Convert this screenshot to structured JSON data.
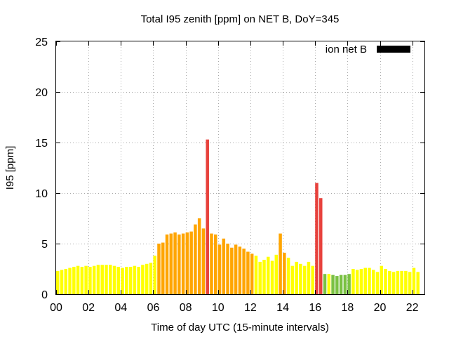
{
  "chart_data": {
    "type": "bar",
    "title": "Total I95 zenith [ppm] on NET B, DoY=345",
    "xlabel": "Time of day UTC (15-minute intervals)",
    "ylabel": "I95 [ppm]",
    "legend": {
      "label": "ion net B",
      "color": "#000000",
      "position": "top-right"
    },
    "xlim": [
      0,
      22.75
    ],
    "ylim": [
      0,
      25
    ],
    "x_ticks": [
      {
        "value": 0,
        "label": "00"
      },
      {
        "value": 2,
        "label": "02"
      },
      {
        "value": 4,
        "label": "04"
      },
      {
        "value": 6,
        "label": "06"
      },
      {
        "value": 8,
        "label": "08"
      },
      {
        "value": 10,
        "label": "10"
      },
      {
        "value": 12,
        "label": "12"
      },
      {
        "value": 14,
        "label": "14"
      },
      {
        "value": 16,
        "label": "16"
      },
      {
        "value": 18,
        "label": "18"
      },
      {
        "value": 20,
        "label": "20"
      },
      {
        "value": 22,
        "label": "22"
      }
    ],
    "y_ticks": [
      0,
      5,
      10,
      15,
      20,
      25
    ],
    "grid": true,
    "interval_hours": 0.25,
    "color_classes": {
      "green": "#7ac143",
      "yellow": "#ffff00",
      "orange": "#ffa500",
      "red": "#e8413c"
    },
    "bars": [
      {
        "t": 0.0,
        "v": 2.3,
        "c": "yellow"
      },
      {
        "t": 0.25,
        "v": 2.4,
        "c": "yellow"
      },
      {
        "t": 0.5,
        "v": 2.5,
        "c": "yellow"
      },
      {
        "t": 0.75,
        "v": 2.6,
        "c": "yellow"
      },
      {
        "t": 1.0,
        "v": 2.7,
        "c": "yellow"
      },
      {
        "t": 1.25,
        "v": 2.8,
        "c": "yellow"
      },
      {
        "t": 1.5,
        "v": 2.7,
        "c": "yellow"
      },
      {
        "t": 1.75,
        "v": 2.8,
        "c": "yellow"
      },
      {
        "t": 2.0,
        "v": 2.7,
        "c": "yellow"
      },
      {
        "t": 2.25,
        "v": 2.8,
        "c": "yellow"
      },
      {
        "t": 2.5,
        "v": 2.9,
        "c": "yellow"
      },
      {
        "t": 2.75,
        "v": 2.9,
        "c": "yellow"
      },
      {
        "t": 3.0,
        "v": 2.9,
        "c": "yellow"
      },
      {
        "t": 3.25,
        "v": 2.9,
        "c": "yellow"
      },
      {
        "t": 3.5,
        "v": 2.8,
        "c": "yellow"
      },
      {
        "t": 3.75,
        "v": 2.7,
        "c": "yellow"
      },
      {
        "t": 4.0,
        "v": 2.6,
        "c": "yellow"
      },
      {
        "t": 4.25,
        "v": 2.7,
        "c": "yellow"
      },
      {
        "t": 4.5,
        "v": 2.7,
        "c": "yellow"
      },
      {
        "t": 4.75,
        "v": 2.8,
        "c": "yellow"
      },
      {
        "t": 5.0,
        "v": 2.7,
        "c": "yellow"
      },
      {
        "t": 5.25,
        "v": 2.9,
        "c": "yellow"
      },
      {
        "t": 5.5,
        "v": 3.0,
        "c": "yellow"
      },
      {
        "t": 5.75,
        "v": 3.1,
        "c": "yellow"
      },
      {
        "t": 6.0,
        "v": 3.8,
        "c": "yellow"
      },
      {
        "t": 6.25,
        "v": 5.0,
        "c": "orange"
      },
      {
        "t": 6.5,
        "v": 5.1,
        "c": "orange"
      },
      {
        "t": 6.75,
        "v": 5.9,
        "c": "orange"
      },
      {
        "t": 7.0,
        "v": 6.0,
        "c": "orange"
      },
      {
        "t": 7.25,
        "v": 6.1,
        "c": "orange"
      },
      {
        "t": 7.5,
        "v": 5.9,
        "c": "orange"
      },
      {
        "t": 7.75,
        "v": 6.0,
        "c": "orange"
      },
      {
        "t": 8.0,
        "v": 6.1,
        "c": "orange"
      },
      {
        "t": 8.25,
        "v": 6.2,
        "c": "orange"
      },
      {
        "t": 8.5,
        "v": 6.9,
        "c": "orange"
      },
      {
        "t": 8.75,
        "v": 7.5,
        "c": "orange"
      },
      {
        "t": 9.0,
        "v": 6.5,
        "c": "orange"
      },
      {
        "t": 9.25,
        "v": 15.3,
        "c": "red"
      },
      {
        "t": 9.5,
        "v": 6.0,
        "c": "orange"
      },
      {
        "t": 9.75,
        "v": 5.9,
        "c": "orange"
      },
      {
        "t": 10.0,
        "v": 4.9,
        "c": "orange"
      },
      {
        "t": 10.25,
        "v": 5.5,
        "c": "orange"
      },
      {
        "t": 10.5,
        "v": 5.0,
        "c": "orange"
      },
      {
        "t": 10.75,
        "v": 4.6,
        "c": "orange"
      },
      {
        "t": 11.0,
        "v": 4.9,
        "c": "orange"
      },
      {
        "t": 11.25,
        "v": 4.7,
        "c": "orange"
      },
      {
        "t": 11.5,
        "v": 4.5,
        "c": "orange"
      },
      {
        "t": 11.75,
        "v": 4.2,
        "c": "orange"
      },
      {
        "t": 12.0,
        "v": 4.0,
        "c": "orange"
      },
      {
        "t": 12.25,
        "v": 3.8,
        "c": "yellow"
      },
      {
        "t": 12.5,
        "v": 3.2,
        "c": "yellow"
      },
      {
        "t": 12.75,
        "v": 3.4,
        "c": "yellow"
      },
      {
        "t": 13.0,
        "v": 3.7,
        "c": "yellow"
      },
      {
        "t": 13.25,
        "v": 3.3,
        "c": "yellow"
      },
      {
        "t": 13.5,
        "v": 3.9,
        "c": "yellow"
      },
      {
        "t": 13.75,
        "v": 6.0,
        "c": "orange"
      },
      {
        "t": 14.0,
        "v": 4.1,
        "c": "orange"
      },
      {
        "t": 14.25,
        "v": 3.6,
        "c": "yellow"
      },
      {
        "t": 14.5,
        "v": 2.8,
        "c": "yellow"
      },
      {
        "t": 14.75,
        "v": 3.2,
        "c": "yellow"
      },
      {
        "t": 15.0,
        "v": 3.0,
        "c": "yellow"
      },
      {
        "t": 15.25,
        "v": 2.8,
        "c": "yellow"
      },
      {
        "t": 15.5,
        "v": 3.2,
        "c": "yellow"
      },
      {
        "t": 15.75,
        "v": 2.8,
        "c": "yellow"
      },
      {
        "t": 16.0,
        "v": 11.0,
        "c": "red"
      },
      {
        "t": 16.25,
        "v": 9.5,
        "c": "red"
      },
      {
        "t": 16.5,
        "v": 2.0,
        "c": "green"
      },
      {
        "t": 16.75,
        "v": 2.0,
        "c": "yellow"
      },
      {
        "t": 17.0,
        "v": 1.9,
        "c": "green"
      },
      {
        "t": 17.25,
        "v": 1.8,
        "c": "green"
      },
      {
        "t": 17.5,
        "v": 1.9,
        "c": "green"
      },
      {
        "t": 17.75,
        "v": 1.9,
        "c": "green"
      },
      {
        "t": 18.0,
        "v": 2.0,
        "c": "green"
      },
      {
        "t": 18.25,
        "v": 2.5,
        "c": "yellow"
      },
      {
        "t": 18.5,
        "v": 2.4,
        "c": "yellow"
      },
      {
        "t": 18.75,
        "v": 2.5,
        "c": "yellow"
      },
      {
        "t": 19.0,
        "v": 2.6,
        "c": "yellow"
      },
      {
        "t": 19.25,
        "v": 2.6,
        "c": "yellow"
      },
      {
        "t": 19.5,
        "v": 2.4,
        "c": "yellow"
      },
      {
        "t": 19.75,
        "v": 2.2,
        "c": "yellow"
      },
      {
        "t": 20.0,
        "v": 2.8,
        "c": "yellow"
      },
      {
        "t": 20.25,
        "v": 2.5,
        "c": "yellow"
      },
      {
        "t": 20.5,
        "v": 2.3,
        "c": "yellow"
      },
      {
        "t": 20.75,
        "v": 2.2,
        "c": "yellow"
      },
      {
        "t": 21.0,
        "v": 2.3,
        "c": "yellow"
      },
      {
        "t": 21.25,
        "v": 2.3,
        "c": "yellow"
      },
      {
        "t": 21.5,
        "v": 2.3,
        "c": "yellow"
      },
      {
        "t": 21.75,
        "v": 2.2,
        "c": "yellow"
      },
      {
        "t": 22.0,
        "v": 2.6,
        "c": "yellow"
      },
      {
        "t": 22.25,
        "v": 2.2,
        "c": "yellow"
      }
    ]
  }
}
